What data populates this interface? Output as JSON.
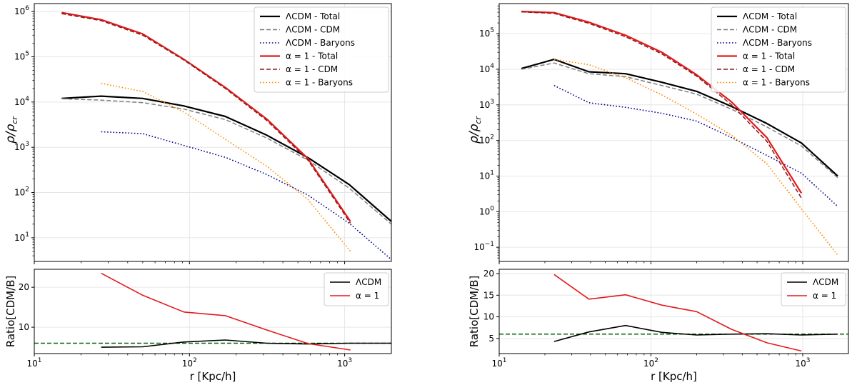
{
  "colors": {
    "lcdm_total": "#000000",
    "lcdm_cdm": "#808080",
    "lcdm_baryons": "#00008b",
    "alpha_total": "#e41a1c",
    "alpha_cdm": "#8b1a1a",
    "alpha_baryons": "#ff8c00",
    "reference": "#006400"
  },
  "chart_data": [
    {
      "type": "line",
      "panel": "left-top",
      "xscale": "log",
      "yscale": "log",
      "xlim": [
        10,
        2000
      ],
      "ylim": [
        3,
        1500000
      ],
      "xlabel": "",
      "ylabel": "ρ/ρ_cr",
      "ylabel_main": "ρ/ρ",
      "ylabel_sub": "cr",
      "xticks": [
        {
          "v": 10,
          "base": "10",
          "exp": "1"
        },
        {
          "v": 100,
          "base": "10",
          "exp": "2"
        },
        {
          "v": 1000,
          "base": "10",
          "exp": "3"
        }
      ],
      "yticks": [
        {
          "v": 10,
          "base": "10",
          "exp": "1"
        },
        {
          "v": 100,
          "base": "10",
          "exp": "2"
        },
        {
          "v": 1000,
          "base": "10",
          "exp": "3"
        },
        {
          "v": 10000,
          "base": "10",
          "exp": "4"
        },
        {
          "v": 100000,
          "base": "10",
          "exp": "5"
        },
        {
          "v": 1000000,
          "base": "10",
          "exp": "6"
        }
      ],
      "legend": "top-right",
      "series": [
        {
          "name": "ΛCDM - Total",
          "key": "lcdm_total",
          "dash": "solid",
          "width": 2.2,
          "x": [
            15,
            27,
            50,
            92,
            170,
            315,
            580,
            1070,
            2000
          ],
          "y": [
            12000,
            13500,
            12000,
            8200,
            4800,
            1850,
            590,
            150,
            23
          ]
        },
        {
          "name": "ΛCDM - CDM",
          "key": "lcdm_cdm",
          "dash": "dashed",
          "width": 1.5,
          "x": [
            15,
            27,
            50,
            92,
            170,
            315,
            580,
            1070,
            2000
          ],
          "y": [
            11800,
            11000,
            9700,
            7000,
            4100,
            1600,
            520,
            125,
            20
          ]
        },
        {
          "name": "ΛCDM - Baryons",
          "key": "lcdm_baryons",
          "dash": "dotted",
          "width": 1.6,
          "x": [
            27,
            50,
            92,
            170,
            315,
            580,
            1070,
            2000
          ],
          "y": [
            2200,
            2000,
            1100,
            600,
            250,
            88,
            21,
            3.3
          ]
        },
        {
          "name": "α = 1 - Total",
          "key": "alpha_total",
          "dash": "solid",
          "width": 2.2,
          "x": [
            15,
            27,
            50,
            92,
            170,
            315,
            580,
            1090
          ],
          "y": [
            950000,
            660000,
            320000,
            88000,
            21000,
            4200,
            560,
            23
          ]
        },
        {
          "name": "α = 1 - CDM",
          "key": "alpha_cdm",
          "dash": "dashed",
          "width": 1.5,
          "x": [
            15,
            27,
            50,
            92,
            170,
            315,
            580,
            1090
          ],
          "y": [
            900000,
            630000,
            300000,
            85000,
            20000,
            3900,
            520,
            21
          ]
        },
        {
          "name": "α = 1 - Baryons",
          "key": "alpha_baryons",
          "dash": "dotted",
          "width": 1.6,
          "x": [
            27,
            50,
            92,
            170,
            315,
            580,
            1090
          ],
          "y": [
            26000,
            17000,
            6000,
            1500,
            380,
            70,
            5
          ]
        }
      ]
    },
    {
      "type": "line",
      "panel": "left-bottom",
      "xscale": "log",
      "yscale": "linear",
      "xlim": [
        10,
        2000
      ],
      "ylim": [
        3.4,
        24.5
      ],
      "xlabel": "r [Kpc/h]",
      "ylabel": "Ratio[CDM/B]",
      "xticks": [
        {
          "v": 10,
          "base": "10",
          "exp": "1"
        },
        {
          "v": 100,
          "base": "10",
          "exp": "2"
        },
        {
          "v": 1000,
          "base": "10",
          "exp": "3"
        }
      ],
      "yticks": [
        {
          "v": 10,
          "label": "10"
        },
        {
          "v": 20,
          "label": "20"
        }
      ],
      "reference_line": 6.0,
      "legend": "top-right",
      "series": [
        {
          "name": "ΛCDM",
          "key": "lcdm_total",
          "dash": "solid",
          "width": 1.6,
          "x": [
            27,
            50,
            92,
            170,
            315,
            580,
            1070,
            2000
          ],
          "y": [
            5.0,
            5.1,
            6.3,
            6.8,
            6.0,
            5.8,
            6.0,
            6.0
          ]
        },
        {
          "name": "α = 1",
          "key": "alpha_total",
          "dash": "solid",
          "width": 1.6,
          "x": [
            27,
            50,
            92,
            170,
            315,
            580,
            1090
          ],
          "y": [
            23.5,
            18.0,
            13.8,
            12.9,
            9.3,
            5.9,
            4.3
          ]
        }
      ]
    },
    {
      "type": "line",
      "panel": "right-top",
      "xscale": "log",
      "yscale": "log",
      "xlim": [
        10,
        2000
      ],
      "ylim": [
        0.04,
        700000
      ],
      "xlabel": "",
      "ylabel": "ρ/ρ_cr",
      "ylabel_main": "ρ/ρ",
      "ylabel_sub": "cr",
      "xticks": [
        {
          "v": 10,
          "base": "10",
          "exp": "1"
        },
        {
          "v": 100,
          "base": "10",
          "exp": "2"
        },
        {
          "v": 1000,
          "base": "10",
          "exp": "3"
        }
      ],
      "yticks": [
        {
          "v": 0.1,
          "base": "10",
          "exp": "−1"
        },
        {
          "v": 1,
          "base": "10",
          "exp": "0"
        },
        {
          "v": 10,
          "base": "10",
          "exp": "1"
        },
        {
          "v": 100,
          "base": "10",
          "exp": "2"
        },
        {
          "v": 1000,
          "base": "10",
          "exp": "3"
        },
        {
          "v": 10000,
          "base": "10",
          "exp": "4"
        },
        {
          "v": 100000,
          "base": "10",
          "exp": "5"
        }
      ],
      "legend": "top-right",
      "series": [
        {
          "name": "ΛCDM - Total",
          "key": "lcdm_total",
          "dash": "solid",
          "width": 2.2,
          "x": [
            14,
            23,
            39,
            68,
            118,
            200,
            340,
            580,
            980,
            1700
          ],
          "y": [
            10500,
            19000,
            8500,
            7500,
            4300,
            2400,
            900,
            300,
            85,
            10
          ]
        },
        {
          "name": "ΛCDM - CDM",
          "key": "lcdm_cdm",
          "dash": "dashed",
          "width": 1.5,
          "x": [
            14,
            23,
            39,
            68,
            118,
            200,
            340,
            580,
            980,
            1700
          ],
          "y": [
            10000,
            15000,
            7500,
            6200,
            3500,
            2000,
            750,
            240,
            70,
            9
          ]
        },
        {
          "name": "ΛCDM - Baryons",
          "key": "lcdm_baryons",
          "dash": "dotted",
          "width": 1.6,
          "x": [
            23,
            39,
            68,
            118,
            200,
            340,
            580,
            980,
            1700
          ],
          "y": [
            3500,
            1150,
            850,
            580,
            350,
            120,
            38,
            12,
            1.4
          ]
        },
        {
          "name": "α = 1 - Total",
          "key": "alpha_total",
          "dash": "solid",
          "width": 2.2,
          "x": [
            14,
            23,
            39,
            68,
            118,
            200,
            340,
            580,
            980
          ],
          "y": [
            420000,
            390000,
            210000,
            90000,
            30000,
            7000,
            1200,
            120,
            3.3
          ]
        },
        {
          "name": "α = 1 - CDM",
          "key": "alpha_cdm",
          "dash": "dashed",
          "width": 1.5,
          "x": [
            14,
            23,
            39,
            68,
            118,
            200,
            340,
            580,
            980
          ],
          "y": [
            410000,
            370000,
            195000,
            82000,
            27000,
            6400,
            1000,
            95,
            2.4
          ]
        },
        {
          "name": "α = 1 - Baryons",
          "key": "alpha_baryons",
          "dash": "dotted",
          "width": 1.6,
          "x": [
            23,
            39,
            68,
            118,
            200,
            340,
            580,
            980,
            1700
          ],
          "y": [
            19000,
            13500,
            5800,
            1900,
            550,
            140,
            22,
            1.2,
            0.06
          ]
        }
      ]
    },
    {
      "type": "line",
      "panel": "right-bottom",
      "xscale": "log",
      "yscale": "linear",
      "xlim": [
        10,
        2000
      ],
      "ylim": [
        1.5,
        21
      ],
      "xlabel": "r [Kpc/h]",
      "ylabel": "Ratio[CDM/B]",
      "xticks": [
        {
          "v": 10,
          "base": "10",
          "exp": "1"
        },
        {
          "v": 100,
          "base": "10",
          "exp": "2"
        },
        {
          "v": 1000,
          "base": "10",
          "exp": "3"
        }
      ],
      "yticks": [
        {
          "v": 5,
          "label": "5"
        },
        {
          "v": 10,
          "label": "10"
        },
        {
          "v": 15,
          "label": "15"
        },
        {
          "v": 20,
          "label": "20"
        }
      ],
      "reference_line": 6.0,
      "legend": "top-right",
      "series": [
        {
          "name": "ΛCDM",
          "key": "lcdm_total",
          "dash": "solid",
          "width": 1.6,
          "x": [
            23,
            39,
            68,
            118,
            200,
            340,
            580,
            980,
            1700
          ],
          "y": [
            4.3,
            6.5,
            8.0,
            6.4,
            5.8,
            6.0,
            6.1,
            5.8,
            6.0
          ]
        },
        {
          "name": "α = 1",
          "key": "alpha_total",
          "dash": "solid",
          "width": 1.6,
          "x": [
            23,
            39,
            68,
            118,
            200,
            340,
            580,
            980
          ],
          "y": [
            19.8,
            14.1,
            15.1,
            12.7,
            11.2,
            7.1,
            4.0,
            2.1
          ]
        }
      ]
    }
  ]
}
